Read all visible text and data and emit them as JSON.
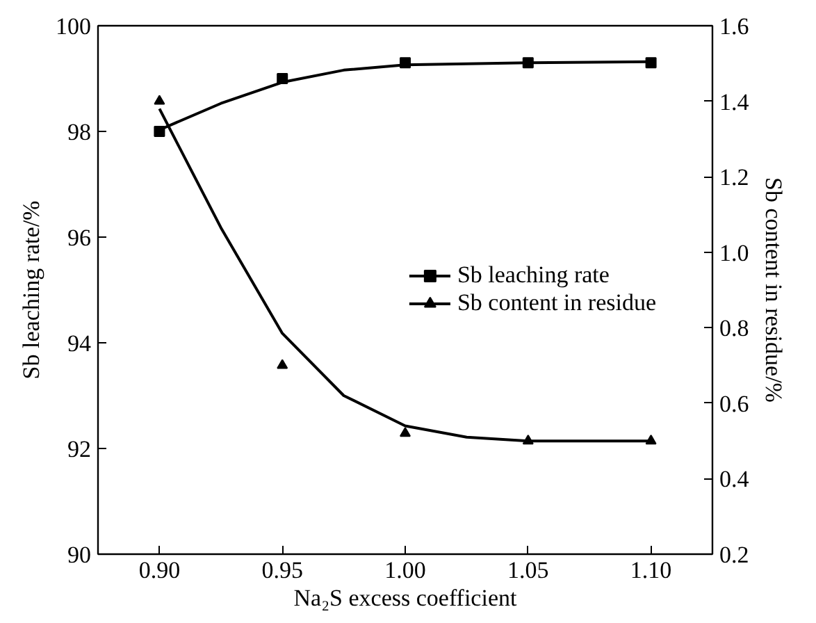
{
  "chart_data": {
    "type": "scatter",
    "xlabel": "Na₂S excess coefficient",
    "ylabel": "Sb leaching rate/%",
    "y2label": "Sb content in residue/%",
    "x": [
      0.9,
      0.95,
      1.0,
      1.05,
      1.1
    ],
    "xlim": [
      0.875,
      1.125
    ],
    "xticks": [
      {
        "value": 0.9,
        "label": "0.90"
      },
      {
        "value": 0.95,
        "label": "0.95"
      },
      {
        "value": 1.0,
        "label": "1.00"
      },
      {
        "value": 1.05,
        "label": "1.05"
      },
      {
        "value": 1.1,
        "label": "1.10"
      }
    ],
    "ylim": [
      90,
      100
    ],
    "yticks": [
      90,
      92,
      94,
      96,
      98,
      100
    ],
    "y2lim": [
      0.2,
      1.6
    ],
    "y2ticks": [
      {
        "value": 0.2,
        "label": "0.2"
      },
      {
        "value": 0.4,
        "label": "0.4"
      },
      {
        "value": 0.6,
        "label": "0.6"
      },
      {
        "value": 0.8,
        "label": "0.8"
      },
      {
        "value": 1.0,
        "label": "1.0"
      },
      {
        "value": 1.2,
        "label": "1.2"
      },
      {
        "value": 1.4,
        "label": "1.4"
      },
      {
        "value": 1.6,
        "label": "1.6"
      }
    ],
    "series": [
      {
        "name": "Sb leaching rate",
        "marker": "square",
        "color": "#000000",
        "values": [
          98.0,
          99.0,
          99.3,
          99.3,
          99.3
        ]
      },
      {
        "type": "line",
        "color": "#000000",
        "x": [
          0.9,
          0.925,
          0.95,
          0.975,
          1.0,
          1.05,
          1.1
        ],
        "values": [
          98.03,
          98.53,
          98.93,
          99.16,
          99.26,
          99.3,
          99.32
        ]
      },
      {
        "name": "Sb content in residue",
        "marker": "triangle",
        "axis": "y2",
        "color": "#000000",
        "values": [
          1.4,
          0.7,
          0.52,
          0.5,
          0.5
        ]
      },
      {
        "type": "line",
        "axis": "y2",
        "color": "#000000",
        "x": [
          0.9,
          0.925,
          0.95,
          0.975,
          1.0,
          1.025,
          1.05,
          1.1
        ],
        "values": [
          1.38,
          1.065,
          0.785,
          0.62,
          0.54,
          0.51,
          0.5,
          0.5
        ]
      }
    ],
    "legend": "right",
    "grid": false
  }
}
